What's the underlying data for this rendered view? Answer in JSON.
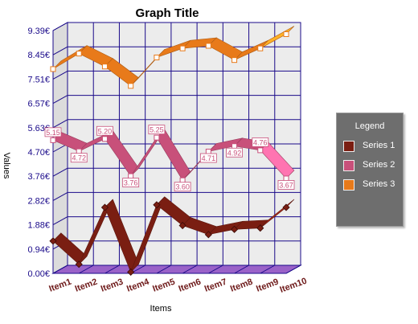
{
  "chart_data": {
    "type": "line",
    "title": "Graph Title",
    "xlabel": "Items",
    "ylabel": "Values",
    "categories": [
      "Item1",
      "Item2",
      "Item3",
      "Item4",
      "Item5",
      "Item6",
      "Item7",
      "Item8",
      "Item9",
      "Item10"
    ],
    "y_ticks": [
      "0.00€",
      "0.94€",
      "1.88€",
      "2.82€",
      "3.76€",
      "4.70€",
      "5.63€",
      "6.57€",
      "7.51€",
      "8.45€",
      "9.39€"
    ],
    "ylim": [
      0,
      9.39
    ],
    "grid": true,
    "legend_title": "Legend",
    "legend_position": "right",
    "series": [
      {
        "name": "Series 1",
        "color": "#7a1e12",
        "values": [
          1.25,
          0.35,
          2.55,
          0.05,
          2.65,
          1.85,
          1.5,
          1.7,
          1.75,
          2.55
        ],
        "labels": []
      },
      {
        "name": "Series 2",
        "color": "#c8507a",
        "values": [
          5.15,
          4.72,
          5.2,
          3.76,
          5.25,
          3.6,
          4.71,
          4.92,
          4.76,
          3.67
        ],
        "labels": [
          "5.15",
          "4.72",
          "5.20",
          "3.76",
          "5.25",
          "3.60",
          "4.71",
          "4.92",
          "4.76",
          "3.67"
        ]
      },
      {
        "name": "Series 3",
        "color": "#e87a1a",
        "values": [
          7.9,
          8.5,
          8.0,
          7.25,
          8.35,
          8.7,
          8.8,
          8.25,
          8.7,
          9.25
        ],
        "labels": []
      }
    ]
  }
}
